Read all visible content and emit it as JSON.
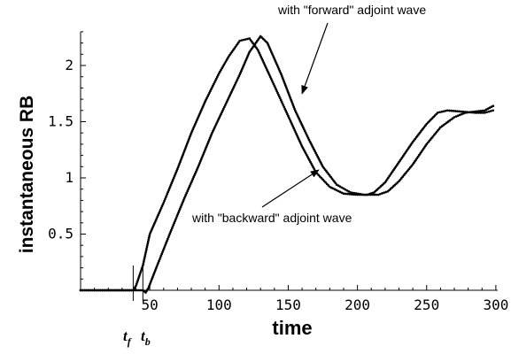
{
  "chart_data": {
    "type": "line",
    "title": "",
    "xlabel": "time",
    "ylabel": "instantaneous RB",
    "xlim": [
      0,
      300
    ],
    "ylim": [
      0,
      2.3
    ],
    "x_ticks": [
      50,
      100,
      150,
      200,
      250,
      300
    ],
    "x_tick_labels": [
      "50",
      "100",
      "150",
      "200",
      "250",
      "300"
    ],
    "y_ticks": [
      0.5,
      1,
      1.5,
      2
    ],
    "y_tick_labels": [
      "0.5",
      "1",
      "1.5",
      "2"
    ],
    "grid": false,
    "series": [
      {
        "name": "with \"forward\" adjoint wave",
        "color": "#000000",
        "points": [
          [
            0,
            0
          ],
          [
            30,
            0
          ],
          [
            38,
            0
          ],
          [
            40,
            0.04
          ],
          [
            45,
            0.22
          ],
          [
            50,
            0.5
          ],
          [
            60,
            0.78
          ],
          [
            70,
            1.08
          ],
          [
            80,
            1.4
          ],
          [
            90,
            1.68
          ],
          [
            100,
            1.93
          ],
          [
            107,
            2.08
          ],
          [
            115,
            2.22
          ],
          [
            122,
            2.24
          ],
          [
            128,
            2.14
          ],
          [
            140,
            1.82
          ],
          [
            150,
            1.55
          ],
          [
            160,
            1.28
          ],
          [
            170,
            1.05
          ],
          [
            180,
            0.92
          ],
          [
            190,
            0.86
          ],
          [
            200,
            0.85
          ],
          [
            207,
            0.85
          ],
          [
            212,
            0.87
          ],
          [
            220,
            0.96
          ],
          [
            230,
            1.14
          ],
          [
            240,
            1.32
          ],
          [
            250,
            1.48
          ],
          [
            258,
            1.58
          ],
          [
            265,
            1.6
          ],
          [
            275,
            1.59
          ],
          [
            285,
            1.58
          ],
          [
            292,
            1.58
          ],
          [
            298,
            1.6
          ]
        ]
      },
      {
        "name": "with \"backward\" adjoint wave",
        "color": "#000000",
        "points": [
          [
            0,
            0
          ],
          [
            38,
            0
          ],
          [
            45,
            0
          ],
          [
            47,
            -0.02
          ],
          [
            49,
            0.02
          ],
          [
            55,
            0.21
          ],
          [
            65,
            0.52
          ],
          [
            75,
            0.82
          ],
          [
            85,
            1.1
          ],
          [
            95,
            1.4
          ],
          [
            105,
            1.66
          ],
          [
            115,
            1.92
          ],
          [
            122,
            2.12
          ],
          [
            130,
            2.26
          ],
          [
            135,
            2.2
          ],
          [
            145,
            1.92
          ],
          [
            155,
            1.6
          ],
          [
            165,
            1.34
          ],
          [
            175,
            1.1
          ],
          [
            185,
            0.94
          ],
          [
            195,
            0.87
          ],
          [
            205,
            0.85
          ],
          [
            215,
            0.85
          ],
          [
            222,
            0.88
          ],
          [
            230,
            0.97
          ],
          [
            240,
            1.12
          ],
          [
            250,
            1.3
          ],
          [
            260,
            1.45
          ],
          [
            270,
            1.54
          ],
          [
            278,
            1.58
          ],
          [
            285,
            1.59
          ],
          [
            292,
            1.6
          ],
          [
            298,
            1.64
          ]
        ]
      }
    ],
    "annotations": [
      {
        "text": "with \"forward\" adjoint wave",
        "points_to": [
          160,
          1.75
        ]
      },
      {
        "text": "with \"backward\" adjoint wave",
        "points_to": [
          172,
          1.07
        ]
      }
    ],
    "markers": [
      {
        "label": "t",
        "subscript": "f",
        "x": 38
      },
      {
        "label": "t",
        "subscript": "b",
        "x": 45
      }
    ]
  }
}
